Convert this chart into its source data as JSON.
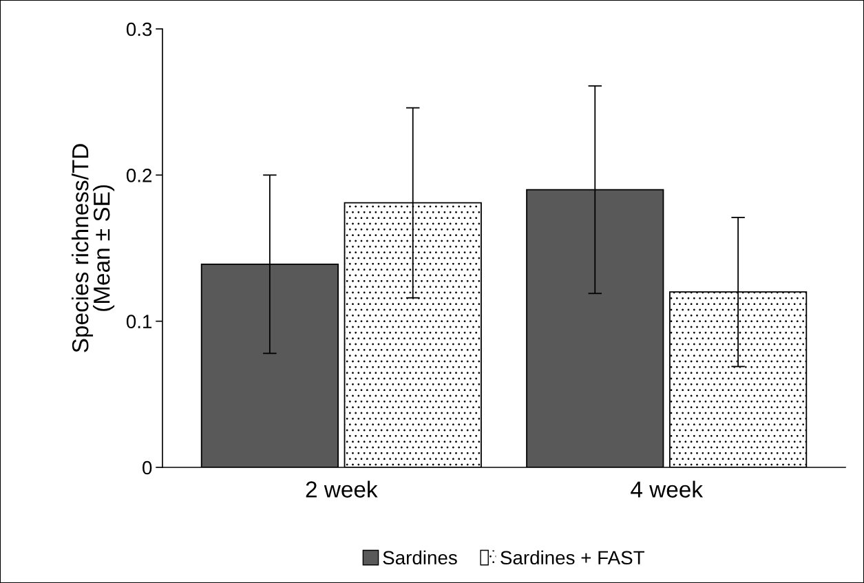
{
  "chart_data": {
    "type": "bar",
    "ylabel": "Species richness/TD\n(Mean ± SE)",
    "categories": [
      "2 week",
      "4 week"
    ],
    "series": [
      {
        "name": "Sardines",
        "color": "#595959",
        "values": [
          0.139,
          0.19
        ],
        "errors": [
          0.061,
          0.071
        ]
      },
      {
        "name": "Sardines + FAST",
        "color": "#ffffff",
        "values": [
          0.181,
          0.12
        ],
        "errors": [
          0.065,
          0.051
        ]
      }
    ],
    "ylim": [
      0,
      0.3
    ],
    "yticks": [
      0,
      0.1,
      0.2,
      0.3
    ],
    "grid": false,
    "legend": "bottom"
  }
}
